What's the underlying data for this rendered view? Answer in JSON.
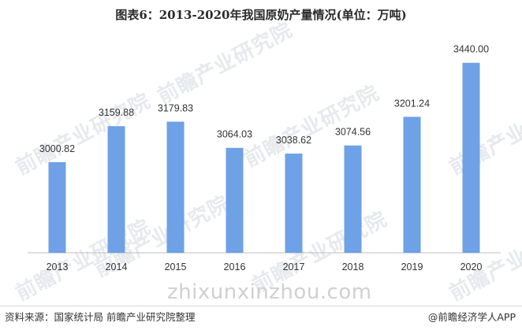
{
  "title": "图表6：2013-2020年我国原奶产量情况(单位：万吨)",
  "chart_data": {
    "type": "bar",
    "title": "图表6：2013-2020年我国原奶产量情况(单位：万吨)",
    "categories": [
      "2013",
      "2014",
      "2015",
      "2016",
      "2017",
      "2018",
      "2019",
      "2020"
    ],
    "values": [
      3000.82,
      3159.88,
      3179.83,
      3064.03,
      3038.62,
      3074.56,
      3201.24,
      3440.0
    ],
    "value_labels": [
      "3000.82",
      "3159.88",
      "3179.83",
      "3064.03",
      "3038.62",
      "3074.56",
      "3201.24",
      "3440.00"
    ],
    "xlabel": "",
    "ylabel": "",
    "ylim": [
      2600,
      3460
    ],
    "grid": false,
    "legend": "none",
    "bar_color": "#6ea1e6"
  },
  "watermark": "前瞻产业研究院",
  "site_watermark": "zhixunxinzhou.com",
  "source": "资料来源：国家统计局 前瞻产业研究院整理",
  "credit": "@前瞻经济学人APP"
}
